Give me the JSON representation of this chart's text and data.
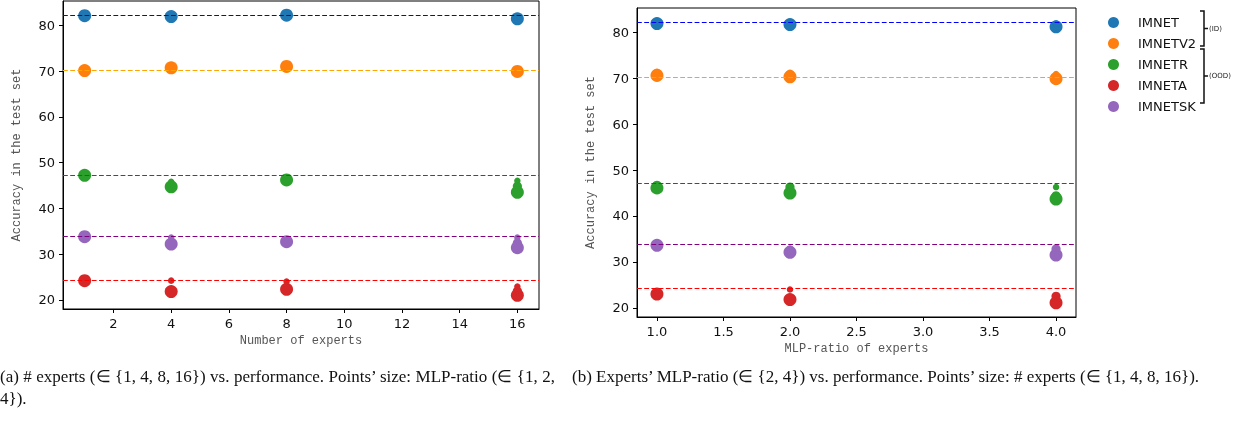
{
  "chart_data": [
    {
      "type": "bubble",
      "xlabel": "Number of experts",
      "ylabel": "Accuracy in the test set",
      "xlim": [
        0.25,
        16.75
      ],
      "ylim": [
        18,
        85.3
      ],
      "xticks": [
        2,
        4,
        6,
        8,
        10,
        12,
        14,
        16
      ],
      "yticks": [
        20,
        30,
        40,
        50,
        60,
        70,
        80
      ],
      "grid": false,
      "legend": false,
      "marker": "circle",
      "series": [
        {
          "color": "#1f77b4",
          "x": [
            1,
            4,
            8,
            16
          ],
          "values": [
            82.1,
            81.9,
            82.2,
            81.4
          ],
          "sizes": [
            1,
            1,
            1,
            1
          ]
        },
        {
          "color": "#ff7f0e",
          "x": [
            1,
            4,
            8,
            16
          ],
          "values": [
            70.1,
            70.7,
            71.0,
            69.9
          ],
          "sizes": [
            1,
            1,
            1,
            1
          ]
        },
        {
          "color": "#2ca02c",
          "x": [
            1,
            4,
            4,
            8,
            16,
            16,
            16
          ],
          "values": [
            47.2,
            44.7,
            45.8,
            46.2,
            43.5,
            44.8,
            46.0
          ],
          "sizes": [
            1,
            1,
            0.25,
            1,
            1,
            0.5,
            0.25
          ]
        },
        {
          "color": "#d62728",
          "x": [
            1,
            4,
            4,
            8,
            8,
            16,
            16,
            16
          ],
          "values": [
            24.2,
            21.8,
            24.2,
            22.3,
            24.0,
            21.0,
            21.9,
            22.9
          ],
          "sizes": [
            1,
            1,
            0.25,
            1,
            0.25,
            1,
            0.5,
            0.25
          ]
        },
        {
          "color": "#9467bd",
          "x": [
            1,
            4,
            4,
            8,
            16,
            16,
            16
          ],
          "values": [
            33.8,
            32.2,
            33.6,
            32.7,
            31.4,
            32.4,
            33.6
          ],
          "sizes": [
            1,
            1,
            0.25,
            1,
            1,
            0.5,
            0.25
          ]
        }
      ],
      "ref_lines": [
        {
          "axis": "y",
          "value": 82.1,
          "color": "#0000ff",
          "line_style": "dashed"
        },
        {
          "axis": "y",
          "value": 70.2,
          "color": "#ffa500",
          "line_style": "dashed"
        },
        {
          "axis": "y",
          "value": 47.2,
          "color": "#008000",
          "line_style": "dashed"
        },
        {
          "axis": "y",
          "value": 33.8,
          "color": "#800080",
          "line_style": "dashed"
        },
        {
          "axis": "y",
          "value": 24.2,
          "color": "#ff0000",
          "line_style": "dashed"
        }
      ],
      "annotations": [
        "(a) # experts (∈ {1, 4, 8, 16}) vs. performance. Points’ size: MLP-ratio (∈ {1, 2, 4})."
      ]
    },
    {
      "type": "bubble",
      "xlabel": "MLP-ratio of experts",
      "ylabel": "Accuracy in the test set",
      "xlim": [
        0.85,
        4.15
      ],
      "ylim": [
        18,
        85.3
      ],
      "xticks": [
        {
          "value": 1,
          "label": "1.0"
        },
        {
          "value": 1.5,
          "label": "1.5"
        },
        {
          "value": 2,
          "label": "2.0"
        },
        {
          "value": 2.5,
          "label": "2.5"
        },
        {
          "value": 3,
          "label": "3.0"
        },
        {
          "value": 3.5,
          "label": "3.5"
        },
        {
          "value": 4,
          "label": "4.0"
        }
      ],
      "yticks": [
        20,
        30,
        40,
        50,
        60,
        70,
        80
      ],
      "grid": false,
      "legend": "right",
      "marker": "circle",
      "series": [
        {
          "name": "IMNET",
          "color": "#1f77b4",
          "x": [
            1,
            2,
            4,
            4
          ],
          "values": [
            81.9,
            81.7,
            81.2,
            81.9
          ],
          "sizes": [
            1,
            1,
            1,
            0.25
          ]
        },
        {
          "name": "IMNETV2",
          "color": "#ff7f0e",
          "x": [
            1,
            1,
            2,
            2,
            4,
            4
          ],
          "values": [
            70.6,
            71.1,
            70.3,
            70.9,
            69.9,
            70.9
          ],
          "sizes": [
            1,
            0.5,
            1,
            0.5,
            1,
            0.25
          ]
        },
        {
          "name": "IMNETR",
          "color": "#2ca02c",
          "x": [
            1,
            1,
            2,
            2,
            4,
            4,
            4
          ],
          "values": [
            46.1,
            46.7,
            45.0,
            46.3,
            43.7,
            44.4,
            46.3
          ],
          "sizes": [
            1,
            0.5,
            1,
            0.5,
            1,
            0.5,
            0.25
          ]
        },
        {
          "name": "IMNETA",
          "color": "#d62728",
          "x": [
            1,
            2,
            2,
            4,
            4
          ],
          "values": [
            23.0,
            21.8,
            24.0,
            21.1,
            22.5
          ],
          "sizes": [
            1,
            1,
            0.25,
            1,
            0.5
          ]
        },
        {
          "name": "IMNETSK",
          "color": "#9467bd",
          "x": [
            1,
            2,
            2,
            4,
            4
          ],
          "values": [
            33.6,
            32.1,
            32.6,
            31.5,
            32.8
          ],
          "sizes": [
            1,
            1,
            0.5,
            1,
            0.5
          ]
        }
      ],
      "ref_lines": [
        {
          "axis": "y",
          "value": 82.2,
          "color": "#0000ff",
          "line_style": "dashed"
        },
        {
          "axis": "y",
          "value": 70.2,
          "color": "#ffa500",
          "line_style": "dashed"
        },
        {
          "axis": "y",
          "value": 47.2,
          "color": "#008000",
          "line_style": "dashed"
        },
        {
          "axis": "y",
          "value": 33.8,
          "color": "#800080",
          "line_style": "dashed"
        },
        {
          "axis": "y",
          "value": 24.2,
          "color": "#ff0000",
          "line_style": "dashed"
        }
      ],
      "annotations": [
        "(ID)",
        "(OOD)",
        "(b) Experts’ MLP-ratio (∈ {2, 4}) vs. performance. Points’ size: # experts (∈ {1, 4, 8, 16})."
      ]
    }
  ]
}
